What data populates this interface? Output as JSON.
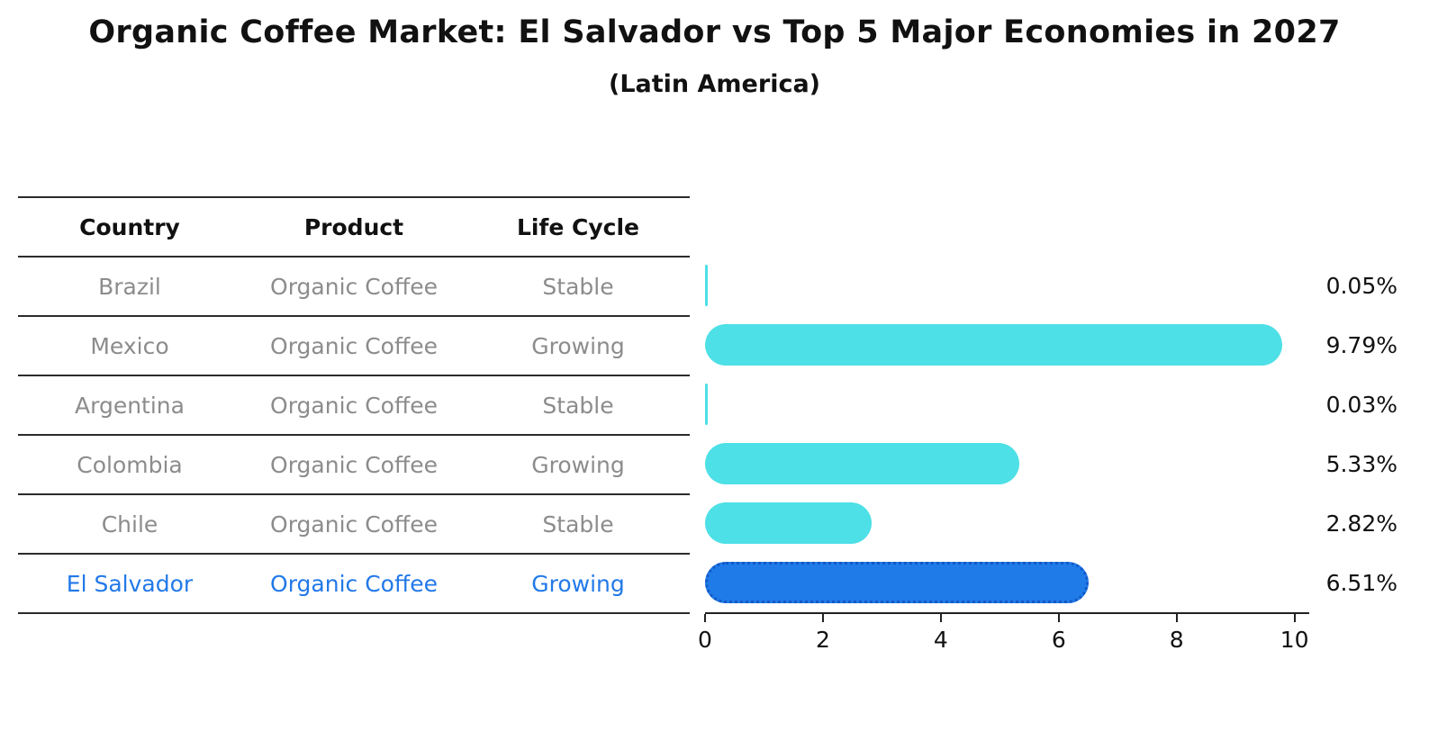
{
  "title": "Organic Coffee Market: El Salvador vs Top 5 Major Economies in 2027",
  "subtitle": "(Latin America)",
  "chart_data": {
    "type": "bar",
    "orientation": "horizontal",
    "title": "Organic Coffee Market: El Salvador vs Top 5 Major Economies in 2027",
    "subtitle": "(Latin America)",
    "columns": [
      "Country",
      "Product",
      "Life Cycle"
    ],
    "rows": [
      {
        "country": "Brazil",
        "product": "Organic Coffee",
        "life_cycle": "Stable",
        "value": 0.05,
        "label": "0.05%",
        "highlight": false
      },
      {
        "country": "Mexico",
        "product": "Organic Coffee",
        "life_cycle": "Growing",
        "value": 9.79,
        "label": "9.79%",
        "highlight": false
      },
      {
        "country": "Argentina",
        "product": "Organic Coffee",
        "life_cycle": "Stable",
        "value": 0.03,
        "label": "0.03%",
        "highlight": false
      },
      {
        "country": "Colombia",
        "product": "Organic Coffee",
        "life_cycle": "Growing",
        "value": 5.33,
        "label": "5.33%",
        "highlight": false
      },
      {
        "country": "Chile",
        "product": "Organic Coffee",
        "life_cycle": "Stable",
        "value": 2.82,
        "label": "2.82%",
        "highlight": false
      },
      {
        "country": "El Salvador",
        "product": "Organic Coffee",
        "life_cycle": "Growing",
        "value": 6.51,
        "label": "6.51%",
        "highlight": true
      }
    ],
    "xlim": [
      0,
      10.25
    ],
    "x_ticks": [
      0,
      2,
      4,
      6,
      8,
      10
    ],
    "grid": false,
    "legend": false,
    "colors": {
      "bar": "#4de0e6",
      "highlight_bar": "#1f7be8",
      "highlight_border": "#1258c8",
      "highlight_text": "#2279e8",
      "row_text": "#8c8c8c",
      "header_text": "#111111",
      "axis_text": "#111111"
    }
  }
}
